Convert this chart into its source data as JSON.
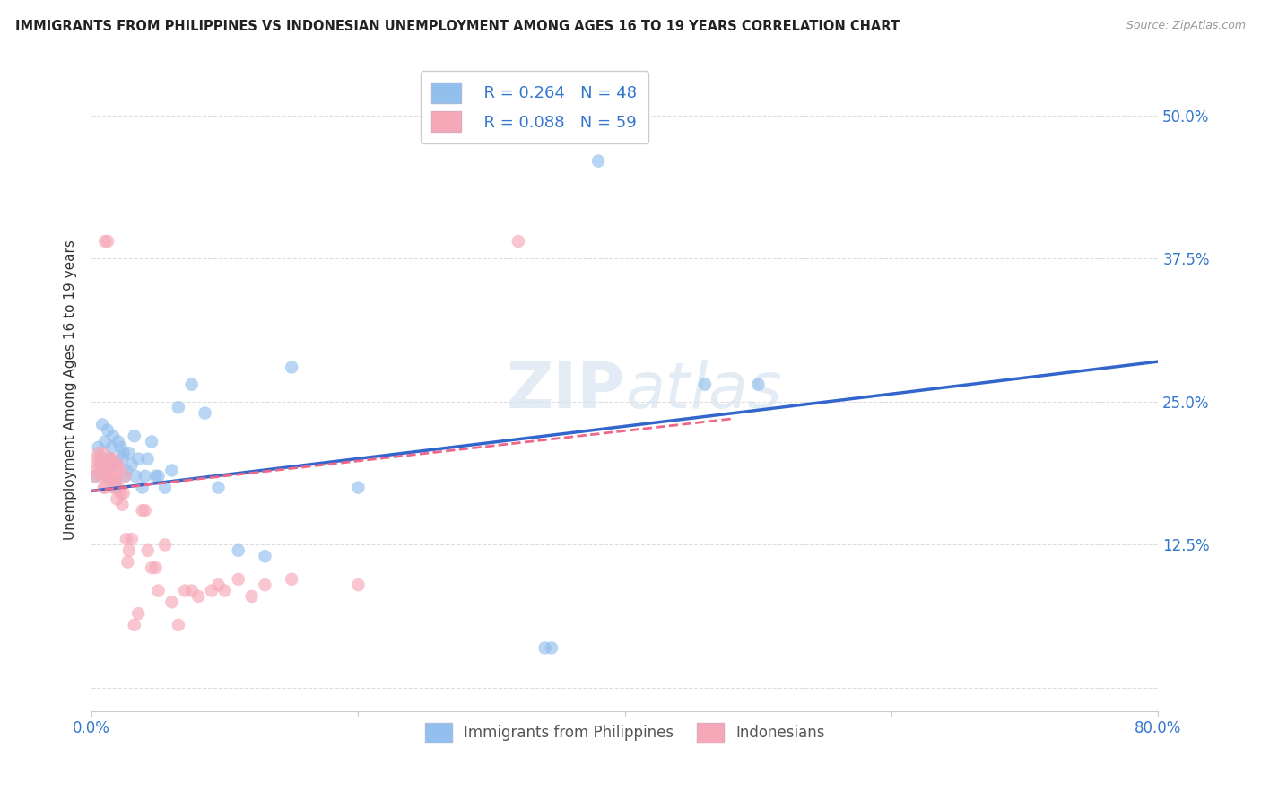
{
  "title": "IMMIGRANTS FROM PHILIPPINES VS INDONESIAN UNEMPLOYMENT AMONG AGES 16 TO 19 YEARS CORRELATION CHART",
  "source": "Source: ZipAtlas.com",
  "ylabel": "Unemployment Among Ages 16 to 19 years",
  "xlim": [
    0.0,
    0.8
  ],
  "ylim": [
    -0.02,
    0.54
  ],
  "yticks": [
    0.0,
    0.125,
    0.25,
    0.375,
    0.5
  ],
  "ytick_labels": [
    "",
    "12.5%",
    "25.0%",
    "37.5%",
    "50.0%"
  ],
  "xticks": [
    0.0,
    0.2,
    0.4,
    0.6,
    0.8
  ],
  "xtick_labels": [
    "0.0%",
    "",
    "",
    "",
    "80.0%"
  ],
  "legend_r1": "R = 0.264",
  "legend_n1": "N = 48",
  "legend_r2": "R = 0.088",
  "legend_n2": "N = 59",
  "legend_label1": "Immigrants from Philippines",
  "legend_label2": "Indonesians",
  "blue_color": "#92BFED",
  "pink_color": "#F7A8B8",
  "blue_line_color": "#3366CC",
  "pink_line_color": "#EE6688",
  "blue_trend_x": [
    0.0,
    0.8
  ],
  "blue_trend_y": [
    0.172,
    0.285
  ],
  "pink_trend_x": [
    0.0,
    0.48
  ],
  "pink_trend_y": [
    0.172,
    0.235
  ],
  "blue_x": [
    0.003,
    0.005,
    0.007,
    0.008,
    0.009,
    0.01,
    0.011,
    0.012,
    0.013,
    0.014,
    0.015,
    0.016,
    0.017,
    0.018,
    0.018,
    0.019,
    0.02,
    0.022,
    0.023,
    0.024,
    0.025,
    0.026,
    0.028,
    0.03,
    0.032,
    0.033,
    0.035,
    0.038,
    0.04,
    0.042,
    0.045,
    0.048,
    0.05,
    0.055,
    0.06,
    0.065,
    0.075,
    0.085,
    0.095,
    0.11,
    0.13,
    0.15,
    0.2,
    0.38,
    0.46,
    0.5,
    0.34,
    0.345
  ],
  "blue_y": [
    0.185,
    0.21,
    0.195,
    0.23,
    0.2,
    0.215,
    0.185,
    0.225,
    0.195,
    0.2,
    0.21,
    0.22,
    0.195,
    0.18,
    0.175,
    0.195,
    0.215,
    0.21,
    0.2,
    0.205,
    0.185,
    0.19,
    0.205,
    0.195,
    0.22,
    0.185,
    0.2,
    0.175,
    0.185,
    0.2,
    0.215,
    0.185,
    0.185,
    0.175,
    0.19,
    0.245,
    0.265,
    0.24,
    0.175,
    0.12,
    0.115,
    0.28,
    0.175,
    0.46,
    0.265,
    0.265,
    0.035,
    0.035
  ],
  "pink_x": [
    0.002,
    0.003,
    0.004,
    0.005,
    0.005,
    0.006,
    0.007,
    0.008,
    0.009,
    0.009,
    0.01,
    0.01,
    0.011,
    0.012,
    0.013,
    0.014,
    0.015,
    0.016,
    0.016,
    0.017,
    0.018,
    0.018,
    0.019,
    0.02,
    0.02,
    0.021,
    0.022,
    0.023,
    0.024,
    0.025,
    0.026,
    0.027,
    0.028,
    0.03,
    0.032,
    0.035,
    0.038,
    0.04,
    0.042,
    0.045,
    0.048,
    0.05,
    0.055,
    0.06,
    0.065,
    0.07,
    0.075,
    0.08,
    0.09,
    0.095,
    0.1,
    0.11,
    0.12,
    0.13,
    0.15,
    0.2,
    0.01,
    0.012,
    0.32
  ],
  "pink_y": [
    0.185,
    0.19,
    0.2,
    0.195,
    0.205,
    0.2,
    0.185,
    0.195,
    0.205,
    0.175,
    0.195,
    0.175,
    0.185,
    0.195,
    0.185,
    0.2,
    0.185,
    0.2,
    0.175,
    0.195,
    0.185,
    0.18,
    0.165,
    0.195,
    0.175,
    0.19,
    0.17,
    0.16,
    0.17,
    0.185,
    0.13,
    0.11,
    0.12,
    0.13,
    0.055,
    0.065,
    0.155,
    0.155,
    0.12,
    0.105,
    0.105,
    0.085,
    0.125,
    0.075,
    0.055,
    0.085,
    0.085,
    0.08,
    0.085,
    0.09,
    0.085,
    0.095,
    0.08,
    0.09,
    0.095,
    0.09,
    0.39,
    0.39,
    0.39
  ]
}
